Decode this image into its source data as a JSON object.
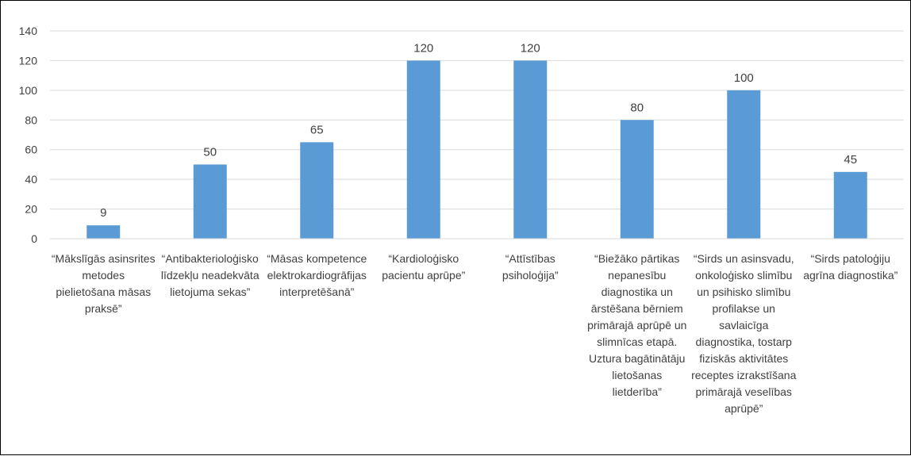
{
  "chart_data": {
    "type": "bar",
    "title": "",
    "xlabel": "",
    "ylabel": "",
    "ylim": [
      0,
      140
    ],
    "yticks": [
      0,
      20,
      40,
      60,
      80,
      100,
      120,
      140
    ],
    "grid": true,
    "legend": "none",
    "bar_color": "#5B9BD5",
    "gridline_color": "#D9D9D9",
    "categories": [
      [
        "“Mākslīgās asinsrites",
        "metodes",
        "pielietošana māsas",
        "praksē”"
      ],
      [
        "“Antibakterioloģisko",
        "līdzekļu neadekvāta",
        "lietojuma sekas”"
      ],
      [
        "“Māsas kompetence",
        "elektrokardiogrāfijas",
        "interpretēšanā”"
      ],
      [
        "“Kardioloģisko",
        "pacientu aprūpe”"
      ],
      [
        "“Attīstības",
        "psiholoģija”"
      ],
      [
        "“Biežāko pārtikas",
        "nepanesību",
        "diagnostika un",
        "ārstēšana bērniem",
        "primārajā aprūpē un",
        "slimnīcas etapā.",
        "Uztura bagātinātāju",
        "lietošanas",
        "lietderība”"
      ],
      [
        "“Sirds un asinsvadu,",
        "onkoloģisko slimību",
        "un psihisko slimību",
        "profilakse un",
        "savlaicīga",
        "diagnostika, tostarp",
        "fiziskās aktivitātes",
        "receptes izrakstīšana",
        "primārajā veselības",
        "aprūpē”"
      ],
      [
        "“Sirds patoloģiju",
        "agrīna diagnostika”"
      ]
    ],
    "values": [
      9,
      50,
      65,
      120,
      120,
      80,
      100,
      45
    ]
  }
}
